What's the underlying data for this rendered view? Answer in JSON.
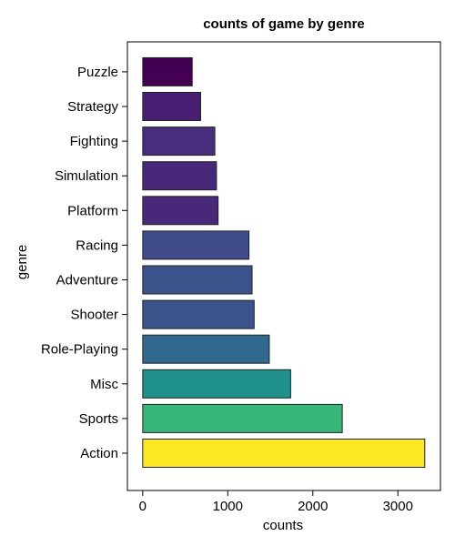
{
  "chart_data": {
    "type": "bar",
    "orientation": "horizontal",
    "title": "counts of game by genre",
    "xlabel": "counts",
    "ylabel": "genre",
    "categories": [
      "Action",
      "Sports",
      "Misc",
      "Role-Playing",
      "Shooter",
      "Adventure",
      "Racing",
      "Platform",
      "Simulation",
      "Fighting",
      "Strategy",
      "Puzzle"
    ],
    "values": [
      3316,
      2346,
      1739,
      1488,
      1310,
      1286,
      1249,
      886,
      867,
      848,
      681,
      582
    ],
    "colors": [
      "#fde725",
      "#35b779",
      "#21918c",
      "#31688e",
      "#3b528b",
      "#3b528b",
      "#3e4a89",
      "#482878",
      "#482878",
      "#472d7b",
      "#471e72",
      "#440154"
    ],
    "xticks": [
      0,
      1000,
      2000,
      3000
    ],
    "xlim": [
      -180,
      3500
    ],
    "grid": false,
    "legend": "none"
  }
}
